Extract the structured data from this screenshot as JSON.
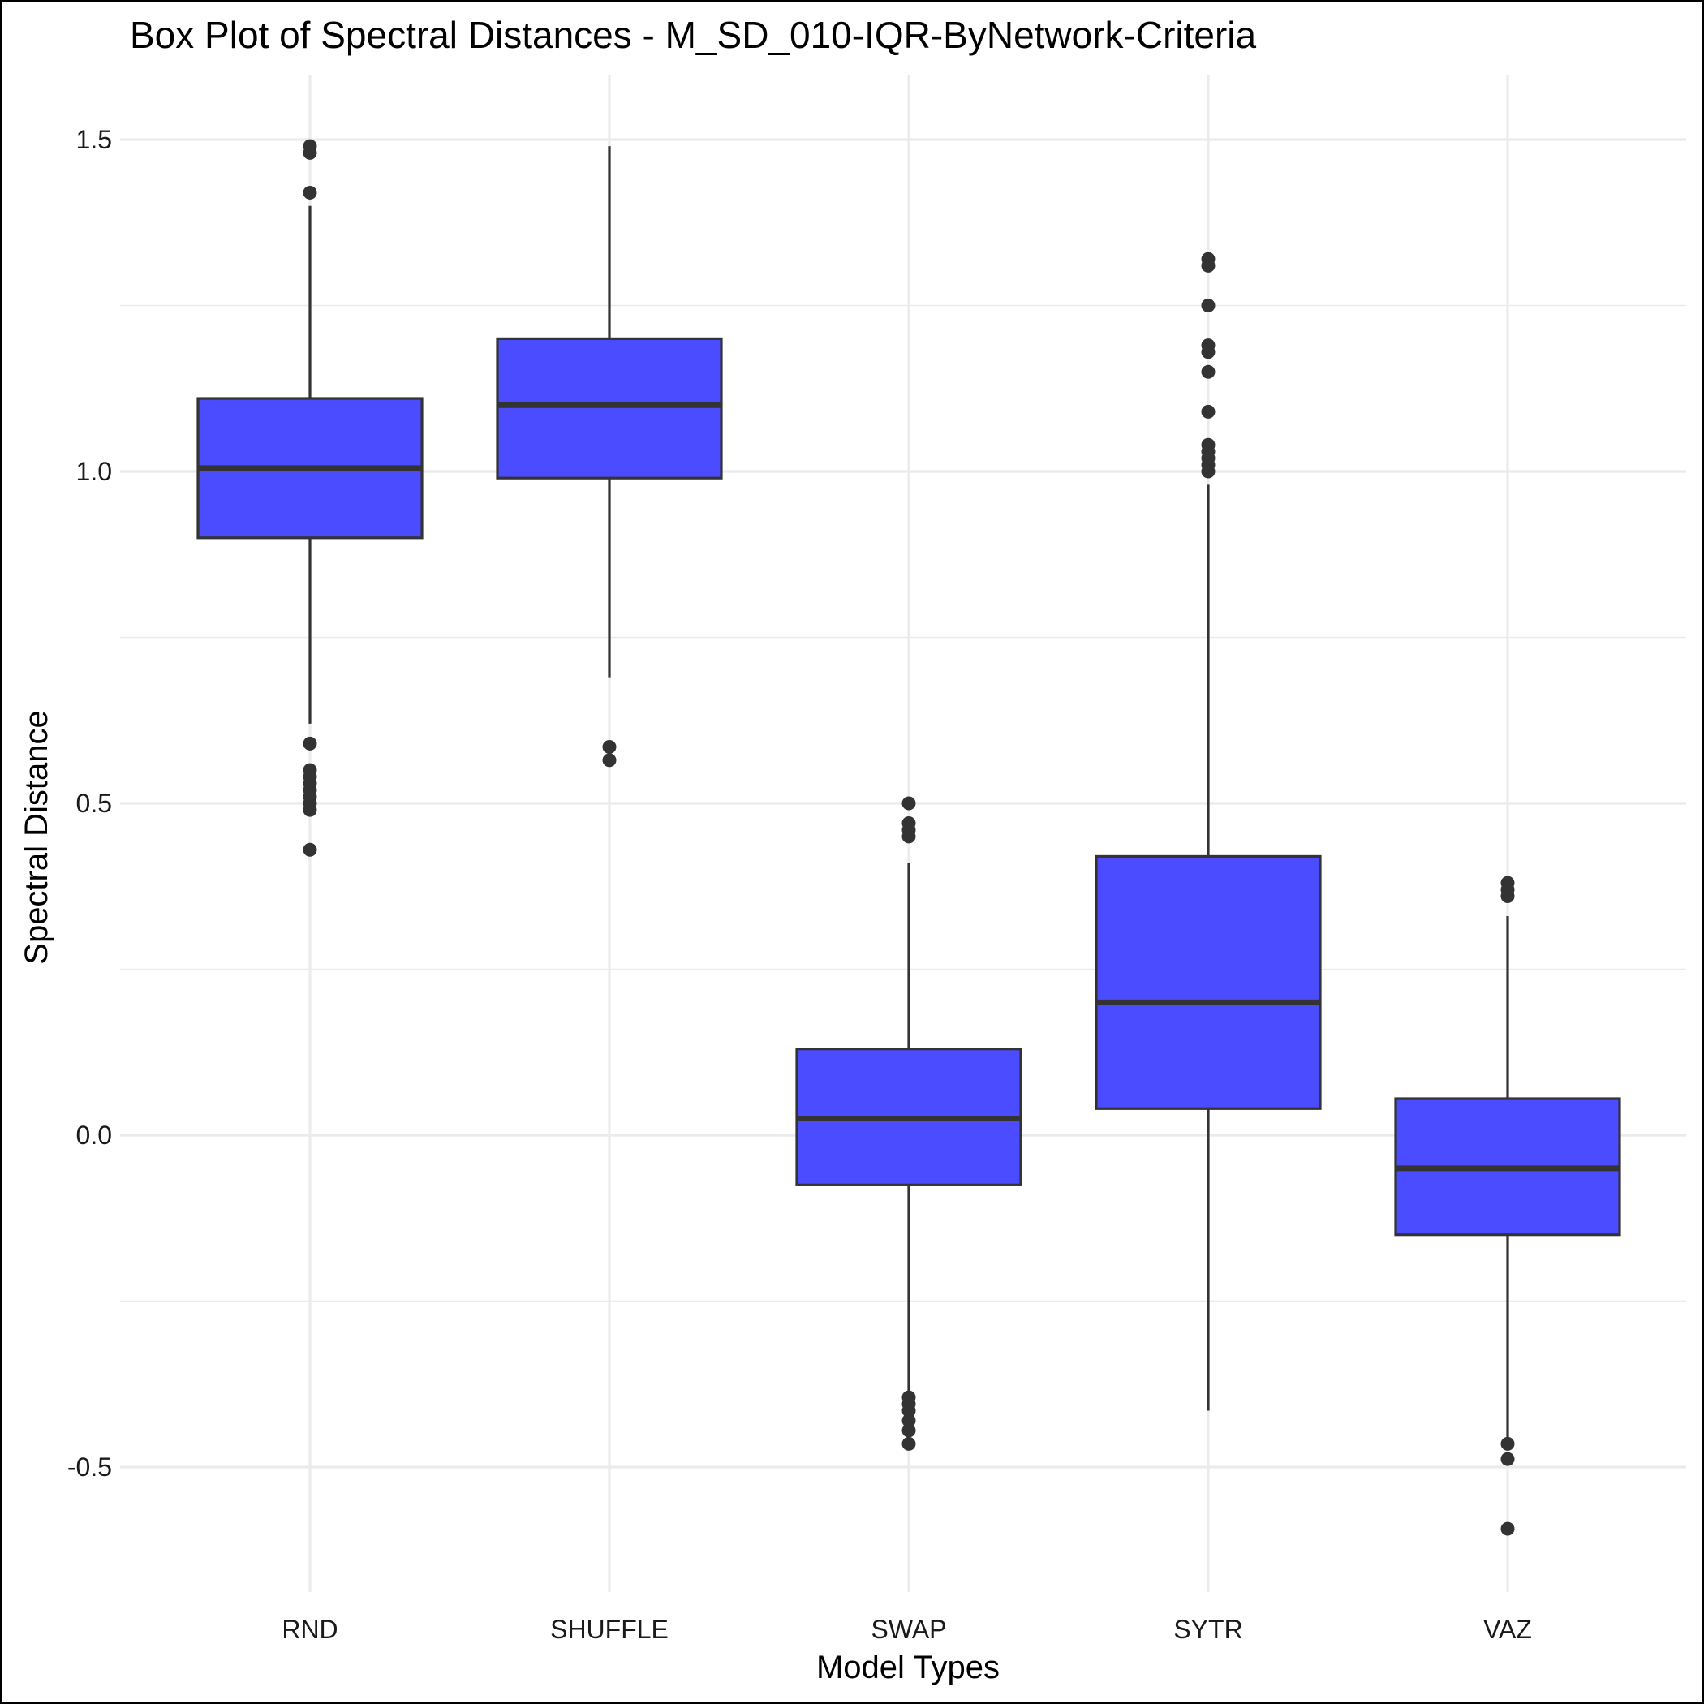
{
  "chart_data": {
    "type": "box",
    "title": "Box Plot of Spectral Distances -  M_SD_010-IQR-ByNetwork-Criteria",
    "xlabel": "Model Types",
    "ylabel": "Spectral Distance",
    "ylim": [
      -0.7,
      1.6
    ],
    "yticks": [
      -0.5,
      0.0,
      0.5,
      1.0,
      1.5
    ],
    "ytick_labels": [
      "-0.5",
      "0.0",
      "0.5",
      "1.0",
      "1.5"
    ],
    "minor_gridlines": [
      -0.25,
      0.25,
      0.75,
      1.25
    ],
    "grid": true,
    "legend": "none",
    "box_fill": "#4b4bff",
    "box_stroke": "#333333",
    "outlier_color": "#333333",
    "gridline_color": "#ebebeb",
    "categories": [
      "RND",
      "SHUFFLE",
      "SWAP",
      "SYTR",
      "VAZ"
    ],
    "boxes": [
      {
        "category": "RND",
        "whisker_low": 0.62,
        "q1": 0.9,
        "median": 1.005,
        "q3": 1.11,
        "whisker_high": 1.4,
        "outliers": [
          1.49,
          1.48,
          1.42,
          0.59,
          0.55,
          0.54,
          0.53,
          0.52,
          0.51,
          0.5,
          0.49,
          0.43
        ]
      },
      {
        "category": "SHUFFLE",
        "whisker_low": 0.69,
        "q1": 0.99,
        "median": 1.1,
        "q3": 1.2,
        "whisker_high": 1.49,
        "outliers": [
          0.585,
          0.565
        ]
      },
      {
        "category": "SWAP",
        "whisker_low": -0.39,
        "q1": -0.075,
        "median": 0.025,
        "q3": 0.13,
        "whisker_high": 0.41,
        "outliers": [
          0.5,
          0.47,
          0.46,
          0.45,
          -0.395,
          -0.405,
          -0.415,
          -0.43,
          -0.445,
          -0.465
        ]
      },
      {
        "category": "SYTR",
        "whisker_low": -0.415,
        "q1": 0.04,
        "median": 0.2,
        "q3": 0.42,
        "whisker_high": 0.98,
        "outliers": [
          1.32,
          1.31,
          1.25,
          1.19,
          1.18,
          1.15,
          1.09,
          1.04,
          1.03,
          1.02,
          1.01,
          1.0
        ]
      },
      {
        "category": "VAZ",
        "whisker_low": -0.46,
        "q1": -0.15,
        "median": -0.05,
        "q3": 0.055,
        "whisker_high": 0.33,
        "outliers": [
          0.38,
          0.37,
          0.36,
          -0.465,
          -0.488,
          -0.593
        ]
      }
    ]
  }
}
